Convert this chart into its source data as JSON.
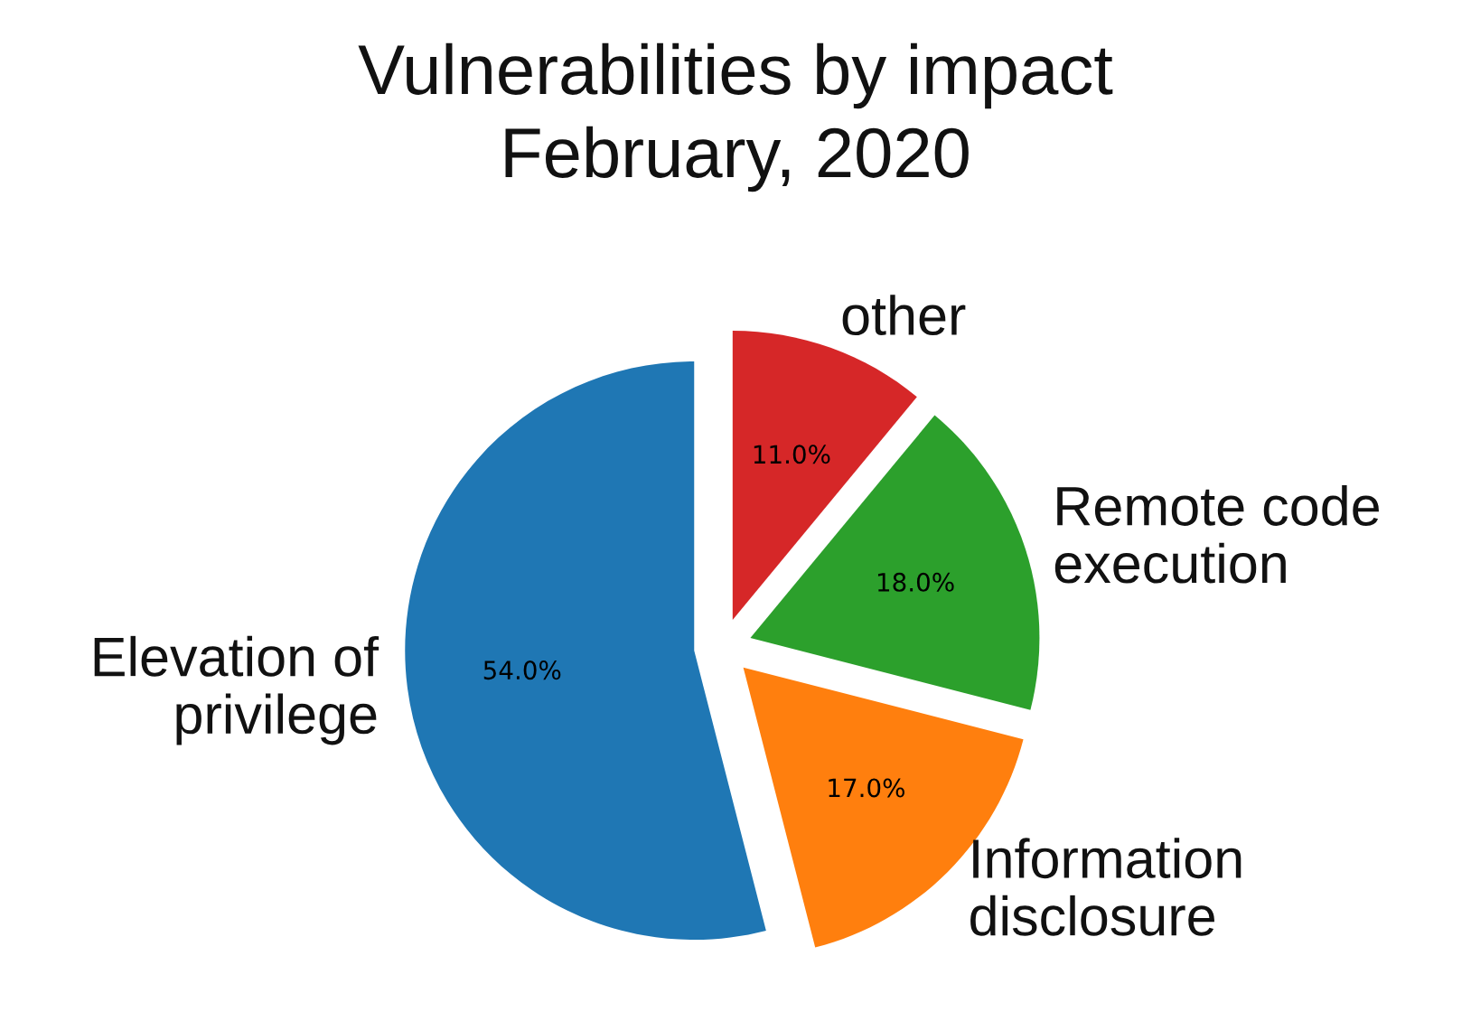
{
  "chart_data": {
    "type": "pie",
    "title": "Vulnerabilities by impact",
    "subtitle": "February, 2020",
    "categories": [
      "Elevation of\nprivilege",
      "Information\ndisclosure",
      "Remote code\nexecution",
      "other"
    ],
    "values": [
      54,
      17,
      18,
      11
    ],
    "colors": [
      "#1f77b4",
      "#ff7f0e",
      "#2ca02c",
      "#d62728"
    ],
    "value_labels": [
      "54.0%",
      "17.0%",
      "18.0%",
      "11.0%"
    ]
  }
}
